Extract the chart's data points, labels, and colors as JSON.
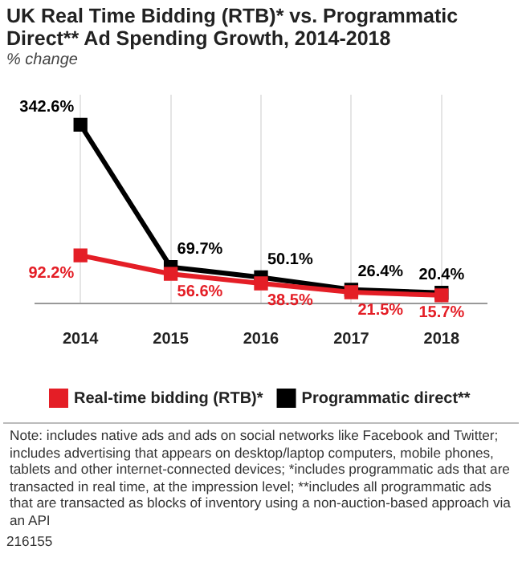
{
  "chart_data": {
    "type": "line",
    "title": "UK Real Time Bidding (RTB)* vs. Programmatic Direct** Ad Spending Growth, 2014-2018",
    "subtitle": "% change",
    "categories": [
      "2014",
      "2015",
      "2016",
      "2017",
      "2018"
    ],
    "series": [
      {
        "name": "Real-time bidding (RTB)*",
        "color": "#e41e26",
        "values": [
          92.2,
          56.6,
          38.5,
          21.5,
          15.7
        ],
        "value_labels": [
          "92.2%",
          "56.6%",
          "38.5%",
          "21.5%",
          "15.7%"
        ]
      },
      {
        "name": "Programmatic direct**",
        "color": "#000000",
        "values": [
          342.6,
          69.7,
          50.1,
          26.4,
          20.4
        ],
        "value_labels": [
          "342.6%",
          "69.7%",
          "50.1%",
          "26.4%",
          "20.4%"
        ]
      }
    ],
    "marker": "square",
    "line_style": "solid",
    "grid": "x",
    "legend": "bottom",
    "tick_labels": "x",
    "annotations": [
      "Note: includes native ads and ads on social networks like Facebook and Twitter; includes advertising that appears on desktop/laptop computers, mobile phones, tablets and other internet-connected devices; *includes programmatic ads that are transacted in real time, at the impression level; **includes all programmatic ads that are transacted as blocks of inventory using a non-auction-based approach via an API",
      "216155"
    ]
  }
}
